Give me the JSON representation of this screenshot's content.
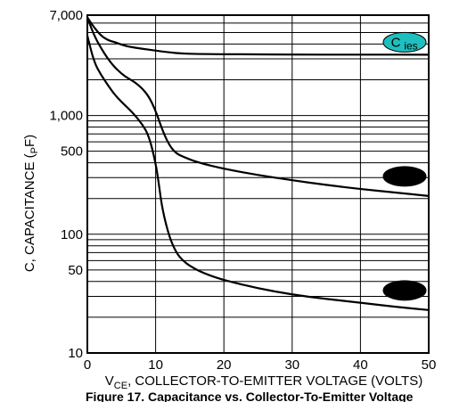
{
  "chart_data": {
    "type": "line",
    "title": "",
    "xlabel": "V",
    "xlabel_subscript": "CE",
    "xlabel_rest": ", COLLECTOR-TO-EMITTER VOLTAGE (VOLTS)",
    "ylabel": "C, CAPACITANCE (",
    "ylabel_subscript": "P",
    "ylabel_rest": "F)",
    "caption": "Figure 17. Capacitance vs. Collector-To-Emitter Voltage",
    "y_scale": "log",
    "xlim": [
      0,
      50
    ],
    "ylim": [
      10,
      7000
    ],
    "grid": true,
    "x_ticks": [
      0,
      10,
      20,
      30,
      40,
      50
    ],
    "x_tick_labels": [
      "0",
      "10",
      "20",
      "30",
      "40",
      "50"
    ],
    "y_tick_values": [
      10,
      50,
      100,
      500,
      1000,
      7000
    ],
    "y_tick_labels": [
      "10",
      "50",
      "100",
      "500",
      "1,000",
      "7,000"
    ],
    "series": [
      {
        "name": "C_ies",
        "label_main": "C",
        "label_sub": "ies",
        "label_fill": "#1fbfbf",
        "x": [
          0,
          1,
          2,
          3,
          4,
          5,
          6,
          8,
          10,
          12,
          14,
          16,
          20,
          25,
          30,
          40,
          50
        ],
        "y": [
          6700,
          5500,
          4700,
          4300,
          4150,
          3950,
          3800,
          3650,
          3520,
          3400,
          3320,
          3300,
          3280,
          3270,
          3260,
          3255,
          3250
        ]
      },
      {
        "name": "",
        "label_fill": "#000000",
        "x": [
          0,
          1,
          2,
          3,
          4,
          5,
          6,
          7,
          8,
          9,
          10,
          11,
          12,
          13,
          14,
          16,
          20,
          25,
          30,
          35,
          40,
          45,
          50
        ],
        "y": [
          6700,
          4700,
          3700,
          3000,
          2550,
          2250,
          2050,
          1900,
          1700,
          1450,
          1100,
          750,
          560,
          480,
          450,
          405,
          355,
          315,
          285,
          260,
          240,
          225,
          210
        ]
      },
      {
        "name": "",
        "label_fill": "#000000",
        "x": [
          0,
          1,
          2,
          3,
          4,
          5,
          6,
          7,
          8,
          9,
          10,
          10.5,
          11,
          12,
          13,
          14,
          15,
          17,
          20,
          25,
          30,
          35,
          40,
          45,
          50
        ],
        "y": [
          4700,
          2800,
          2200,
          1800,
          1500,
          1300,
          1150,
          1000,
          850,
          680,
          400,
          260,
          160,
          95,
          70,
          60,
          54,
          47,
          41,
          35,
          31,
          28.5,
          26.5,
          24.5,
          23
        ]
      }
    ]
  }
}
